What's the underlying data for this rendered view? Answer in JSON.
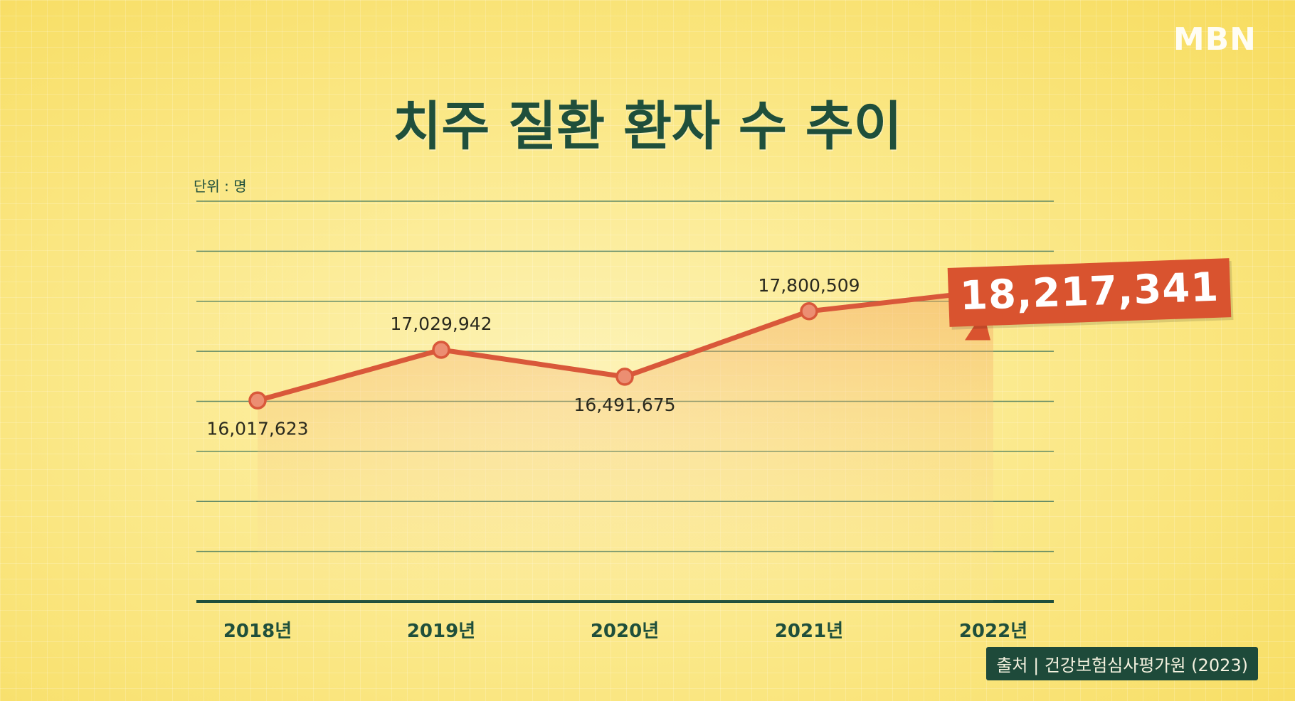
{
  "logo": "MBN",
  "source": "출처 | 건강보험심사평가원 (2023)",
  "colors": {
    "line": "#d9583a",
    "grid": "#2e6a57",
    "axis": "#1f4f3b",
    "callout_bg": "#d9532f"
  },
  "chart_data": {
    "type": "line",
    "title": "치주 질환 환자 수 추이",
    "unit_label": "단위 : 명",
    "categories": [
      "2018년",
      "2019년",
      "2020년",
      "2021년",
      "2022년"
    ],
    "series": [
      {
        "values": [
          16017623,
          17029942,
          16491675,
          17800509,
          18217341
        ]
      }
    ],
    "data_labels": [
      "16,017,623",
      "17,029,942",
      "16,491,675",
      "17,800,509",
      "18,217,341"
    ],
    "highlight_index": 4,
    "ylim": [
      12000000,
      20000000
    ],
    "grid": true,
    "grid_lines": 9
  }
}
